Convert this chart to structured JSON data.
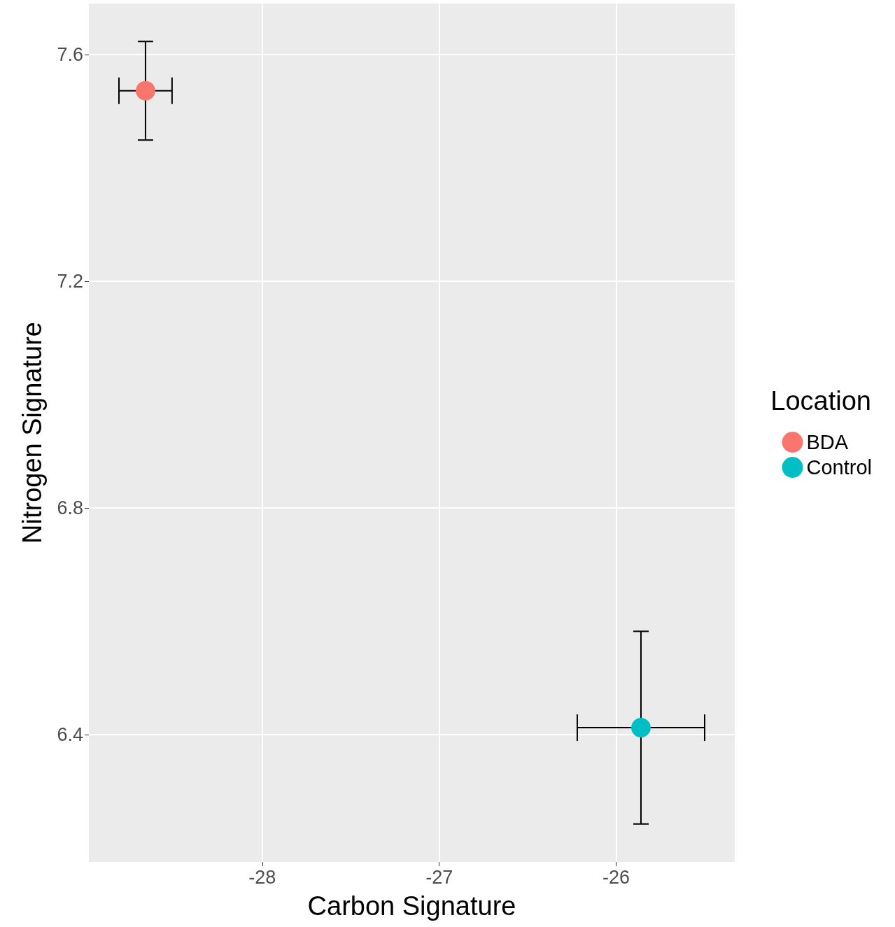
{
  "chart_data": {
    "type": "scatter",
    "xlabel": "Carbon Signature",
    "ylabel": "Nitrogen Signature",
    "legend_title": "Location",
    "series": [
      {
        "name": "BDA",
        "color": "#f8766d",
        "x": [
          -28.66
        ],
        "values": [
          7.536
        ],
        "errors": [
          0.087
        ],
        "xerrors": [
          0.15
        ]
      },
      {
        "name": "Control",
        "color": "#00bfc4",
        "x": [
          -25.86
        ],
        "values": [
          6.412
        ],
        "errors": [
          0.17
        ],
        "xerrors": [
          0.36
        ]
      }
    ],
    "xlim": [
      -28.98,
      -25.33
    ],
    "xticks": [
      -28,
      -27,
      -26
    ],
    "ylim": [
      6.175,
      7.69
    ],
    "yticks": [
      6.4,
      6.8,
      7.2,
      7.6
    ],
    "grid": true,
    "legend": "right",
    "marker": "circle"
  }
}
